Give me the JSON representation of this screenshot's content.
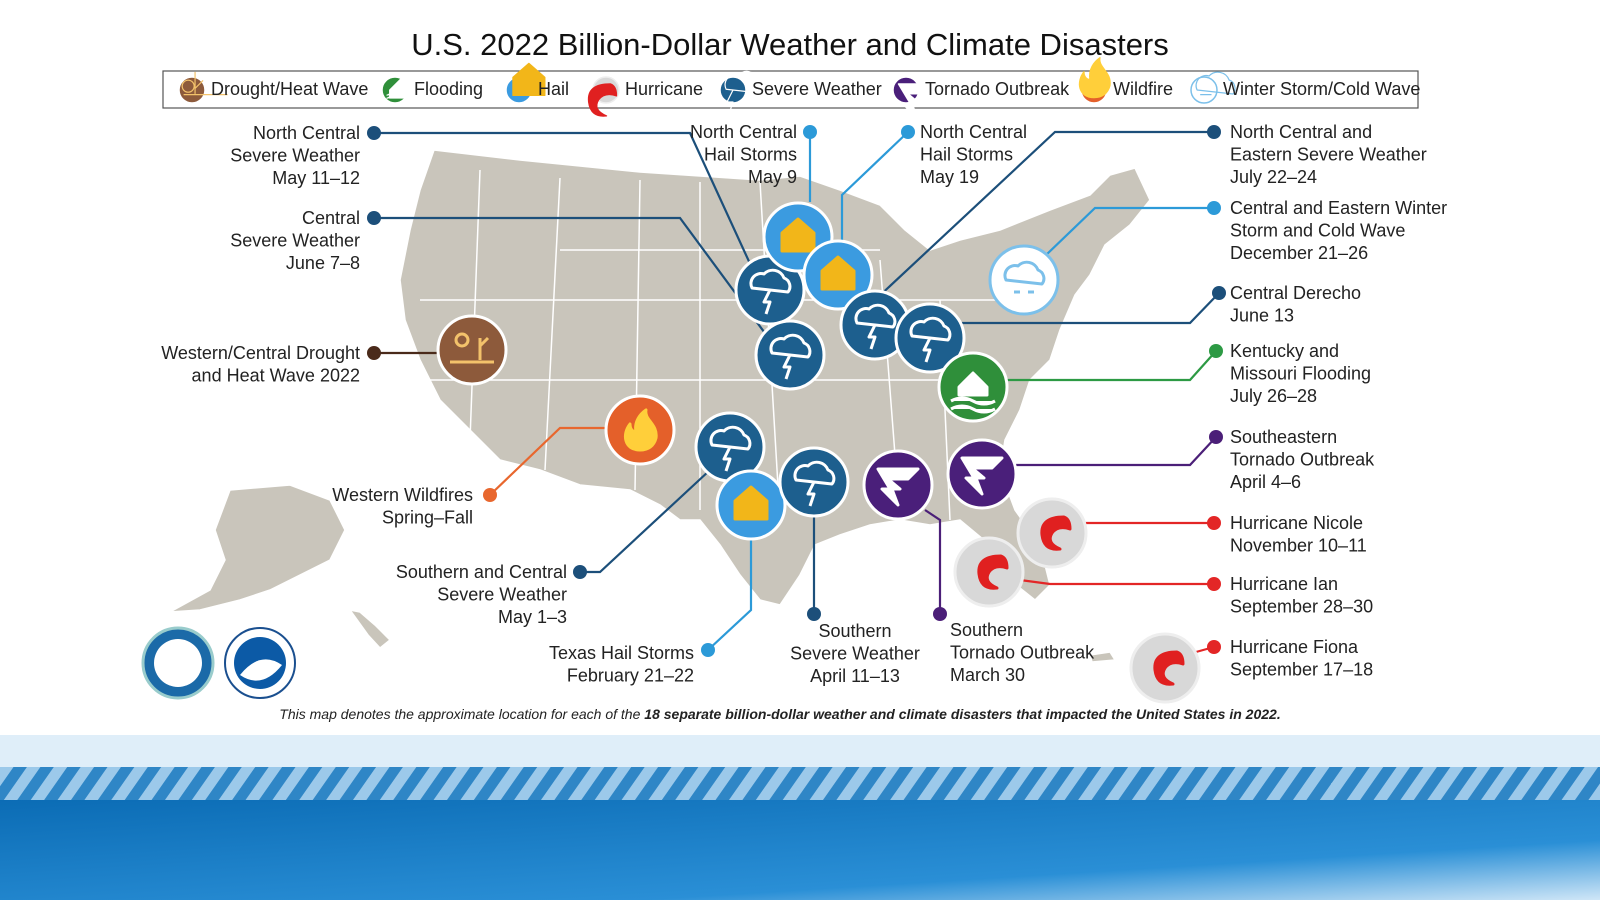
{
  "title": "U.S. 2022 Billion-Dollar Weather and Climate Disasters",
  "legend": [
    "Drought/Heat Wave",
    "Flooding",
    "Hail",
    "Hurricane",
    "Severe Weather",
    "Tornado Outbreak",
    "Wildfire",
    "Winter Storm/Cold Wave"
  ],
  "events": [
    {
      "lines": [
        "North Central",
        "Severe Weather",
        "May 11–12"
      ]
    },
    {
      "lines": [
        "Central",
        "Severe Weather",
        "June 7–8"
      ]
    },
    {
      "lines": [
        "Western/Central Drought",
        "and Heat Wave 2022"
      ]
    },
    {
      "lines": [
        "Western Wildfires",
        "Spring–Fall"
      ]
    },
    {
      "lines": [
        "Southern and Central",
        "Severe Weather",
        "May 1–3"
      ]
    },
    {
      "lines": [
        "Texas Hail Storms",
        "February 21–22"
      ]
    },
    {
      "lines": [
        "Southern",
        "Severe Weather",
        "April 11–13"
      ]
    },
    {
      "lines": [
        "Southern",
        "Tornado Outbreak",
        "March 30"
      ]
    },
    {
      "lines": [
        "North Central",
        "Hail Storms",
        "May 9"
      ]
    },
    {
      "lines": [
        "North Central",
        "Hail Storms",
        "May 19"
      ]
    },
    {
      "lines": [
        "North Central and",
        "Eastern Severe Weather",
        "July 22–24"
      ]
    },
    {
      "lines": [
        "Central and Eastern Winter",
        "Storm and Cold Wave",
        "December 21–26"
      ]
    },
    {
      "lines": [
        "Central Derecho",
        "June 13"
      ]
    },
    {
      "lines": [
        "Kentucky and",
        "Missouri Flooding",
        "July 26–28"
      ]
    },
    {
      "lines": [
        "Southeastern",
        "Tornado Outbreak",
        "April 4–6"
      ]
    },
    {
      "lines": [
        "Hurricane Nicole",
        "November 10–11"
      ]
    },
    {
      "lines": [
        "Hurricane Ian",
        "September 28–30"
      ]
    },
    {
      "lines": [
        "Hurricane Fiona",
        "September 17–18"
      ]
    }
  ],
  "footnote": {
    "text": "This map denotes the approximate location for each of the ",
    "bold": "18 separate billion-dollar weather and climate disasters that impacted the United States in 2022."
  }
}
